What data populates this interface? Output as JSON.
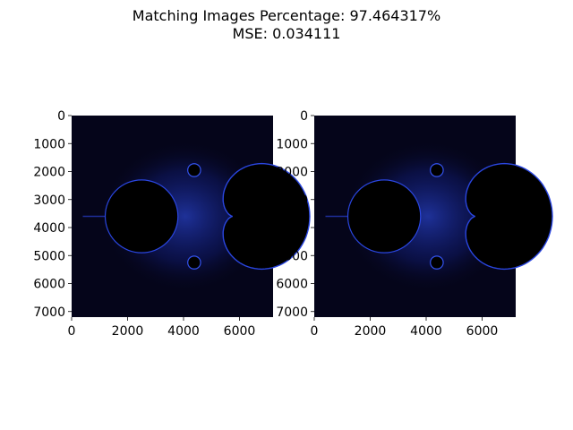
{
  "figure": {
    "title_line1": "Matching Images Percentage: 97.464317%",
    "title_line2": "MSE: 0.034111"
  },
  "chart_data": [
    {
      "type": "heatmap",
      "subtype": "image (Mandelbrot set render)",
      "colormap": [
        "#000000",
        "#05051a",
        "#1a2fbf",
        "#c8d8ff"
      ],
      "xlim": [
        0,
        7200
      ],
      "ylim": [
        7200,
        0
      ],
      "xticks": [
        0,
        2000,
        4000,
        6000
      ],
      "yticks": [
        0,
        1000,
        2000,
        3000,
        4000,
        5000,
        6000,
        7000
      ],
      "title": "",
      "xlabel": "",
      "ylabel": ""
    },
    {
      "type": "heatmap",
      "subtype": "image (Mandelbrot set render)",
      "colormap": [
        "#000000",
        "#05051a",
        "#1a2fbf",
        "#c8d8ff"
      ],
      "xlim": [
        0,
        7200
      ],
      "ylim": [
        7200,
        0
      ],
      "xticks": [
        0,
        2000,
        4000,
        6000
      ],
      "yticks": [
        0,
        1000,
        2000,
        3000,
        4000,
        5000,
        6000,
        7000
      ],
      "title": "",
      "xlabel": "",
      "ylabel": ""
    }
  ]
}
